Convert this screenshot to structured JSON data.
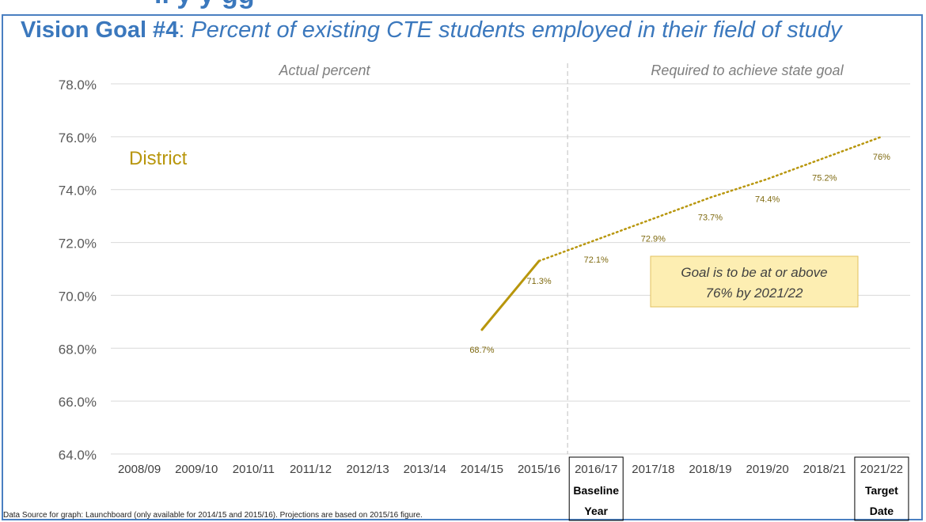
{
  "header": {
    "cut_text": "ll   y   y      gg",
    "title_lead": "Vision Goal #4",
    "title_colon": ":",
    "title_rest": "Percent of existing CTE students employed in their field of study"
  },
  "footer": {
    "source_note": "Data Source for graph: Launchboard (only available for 2014/15 and 2015/16).  Projections are based on 2015/16 figure."
  },
  "chart_data": {
    "type": "line",
    "categories": [
      "2008/09",
      "2009/10",
      "2010/11",
      "2011/12",
      "2012/13",
      "2013/14",
      "2014/15",
      "2015/16",
      "2016/17",
      "2017/18",
      "2018/19",
      "2019/20",
      "2018/21",
      "2021/22"
    ],
    "series": [
      {
        "name": "District",
        "style": "solid",
        "color": "#b8960c",
        "values": [
          null,
          null,
          null,
          null,
          null,
          null,
          68.7,
          71.3,
          null,
          null,
          null,
          null,
          null,
          null
        ],
        "labels": [
          null,
          null,
          null,
          null,
          null,
          null,
          "68.7%",
          "71.3%",
          null,
          null,
          null,
          null,
          null,
          null
        ]
      },
      {
        "name": "",
        "style": "dotted",
        "color": "#b8960c",
        "values": [
          null,
          null,
          null,
          null,
          null,
          null,
          null,
          71.3,
          72.1,
          72.9,
          73.7,
          74.4,
          75.2,
          76.0
        ],
        "labels": [
          null,
          null,
          null,
          null,
          null,
          null,
          null,
          null,
          "72.1%",
          "72.9%",
          "73.7%",
          "74.4%",
          "75.2%",
          "76%"
        ]
      }
    ],
    "ylim": [
      64,
      78
    ],
    "yticks": [
      "64.0%",
      "66.0%",
      "68.0%",
      "70.0%",
      "72.0%",
      "74.0%",
      "76.0%",
      "78.0%"
    ],
    "grid": true,
    "divider_after": "2015/16",
    "region_labels": {
      "left": "Actual percent",
      "right": "Required to achieve state goal"
    },
    "series_label": "District",
    "goal_box": {
      "line1": "Goal is to be at or above",
      "line2": "76% by 2021/22"
    },
    "boxed_categories": [
      {
        "category": "2016/17",
        "line1": "Baseline",
        "line2": "Year"
      },
      {
        "category": "2021/22",
        "line1": "Target",
        "line2": "Date"
      }
    ],
    "colors": {
      "title": "#3b78bd",
      "series": "#b8960c",
      "grid": "#d9d9d9",
      "goal_fill": "#fdeeb2",
      "goal_border": "#e2c25e"
    }
  }
}
